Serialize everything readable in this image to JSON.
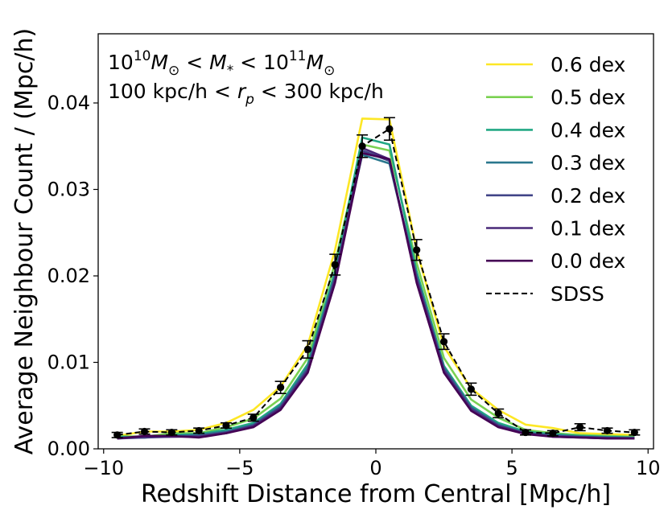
{
  "chart_data": {
    "type": "line",
    "xlabel": "Redshift Distance from Central [Mpc/h]",
    "ylabel": "Average Neighbour Count / (Mpc/h)",
    "xlim": [
      -10.2,
      10.2
    ],
    "ylim": [
      0.0,
      0.048
    ],
    "xticks": [
      -10,
      -5,
      0,
      5,
      10
    ],
    "xtick_labels": [
      "−10",
      "−5",
      "0",
      "5",
      "10"
    ],
    "yticks": [
      0.0,
      0.01,
      0.02,
      0.03,
      0.04
    ],
    "ytick_labels": [
      "0.00",
      "0.01",
      "0.02",
      "0.03",
      "0.04"
    ],
    "annotation_line1": {
      "base1": "10",
      "exp1": "10",
      "sym1": "M",
      "sub1": "⊙",
      "op1": " < ",
      "sym2": "M",
      "sub2": "*",
      "op2": " < ",
      "base2": "10",
      "exp2": "11",
      "sym3": "M",
      "sub3": "⊙"
    },
    "annotation_line2": {
      "pre": "100 kpc/h < ",
      "sym": "r",
      "sub": "p",
      "post": " < 300 kpc/h"
    },
    "legend_position": "top-right",
    "x": [
      -9.5,
      -8.5,
      -7.5,
      -6.5,
      -5.5,
      -4.5,
      -3.5,
      -2.5,
      -1.5,
      -0.5,
      0.5,
      1.5,
      2.5,
      3.5,
      4.5,
      5.5,
      6.5,
      7.5,
      8.5,
      9.5
    ],
    "series": [
      {
        "name": "0.6 dex",
        "color": "#fde725",
        "style": "solid",
        "values": [
          0.0015,
          0.002,
          0.002,
          0.0022,
          0.003,
          0.0045,
          0.0072,
          0.012,
          0.023,
          0.0382,
          0.0381,
          0.023,
          0.0118,
          0.007,
          0.0045,
          0.0028,
          0.0024,
          0.0018,
          0.0017,
          0.0016
        ]
      },
      {
        "name": "0.5 dex",
        "color": "#7ad151",
        "style": "solid",
        "values": [
          0.0015,
          0.0014,
          0.0018,
          0.0018,
          0.0025,
          0.0035,
          0.0058,
          0.0105,
          0.0215,
          0.0352,
          0.0345,
          0.0215,
          0.0105,
          0.0057,
          0.0036,
          0.0022,
          0.0018,
          0.0016,
          0.0015,
          0.0014
        ]
      },
      {
        "name": "0.4 dex",
        "color": "#22a884",
        "style": "solid",
        "values": [
          0.0014,
          0.0013,
          0.0016,
          0.0017,
          0.0022,
          0.003,
          0.0052,
          0.0098,
          0.0205,
          0.036,
          0.0352,
          0.0205,
          0.0096,
          0.005,
          0.003,
          0.002,
          0.0017,
          0.0015,
          0.0014,
          0.0013
        ]
      },
      {
        "name": "0.3 dex",
        "color": "#2a788e",
        "style": "solid",
        "values": [
          0.0013,
          0.0013,
          0.0015,
          0.0016,
          0.002,
          0.0028,
          0.005,
          0.0095,
          0.02,
          0.034,
          0.033,
          0.02,
          0.0094,
          0.0048,
          0.0028,
          0.0018,
          0.0016,
          0.0014,
          0.0013,
          0.0013
        ]
      },
      {
        "name": "0.2 dex",
        "color": "#414487",
        "style": "solid",
        "values": [
          0.0012,
          0.0013,
          0.0014,
          0.0015,
          0.0019,
          0.0027,
          0.0048,
          0.0092,
          0.0198,
          0.0345,
          0.0333,
          0.0198,
          0.0092,
          0.0047,
          0.0027,
          0.0018,
          0.0015,
          0.0014,
          0.0013,
          0.0012
        ]
      },
      {
        "name": "0.1 dex",
        "color": "#482878",
        "style": "solid",
        "values": [
          0.0012,
          0.0014,
          0.0014,
          0.0014,
          0.0018,
          0.0026,
          0.0047,
          0.009,
          0.0195,
          0.0348,
          0.0335,
          0.0195,
          0.009,
          0.0045,
          0.0026,
          0.0018,
          0.0014,
          0.0013,
          0.0012,
          0.0012
        ]
      },
      {
        "name": "0.0 dex",
        "color": "#440154",
        "style": "solid",
        "values": [
          0.0012,
          0.0015,
          0.0015,
          0.0013,
          0.0018,
          0.0025,
          0.0045,
          0.0088,
          0.0192,
          0.0342,
          0.0335,
          0.0192,
          0.0088,
          0.0044,
          0.0025,
          0.0017,
          0.0014,
          0.0013,
          0.0012,
          0.0012
        ]
      },
      {
        "name": "SDSS",
        "color": "#000000",
        "style": "dashed",
        "markers": true,
        "values": [
          0.0016,
          0.002,
          0.0019,
          0.0021,
          0.0027,
          0.0036,
          0.0071,
          0.0115,
          0.0213,
          0.035,
          0.037,
          0.023,
          0.0124,
          0.0069,
          0.0041,
          0.0019,
          0.0018,
          0.0025,
          0.0021,
          0.0019
        ],
        "errors": [
          0.0003,
          0.0003,
          0.0003,
          0.0003,
          0.0003,
          0.0004,
          0.0007,
          0.001,
          0.0012,
          0.0013,
          0.0013,
          0.0012,
          0.0009,
          0.0007,
          0.0005,
          0.0003,
          0.0003,
          0.0004,
          0.0003,
          0.0003
        ]
      }
    ]
  }
}
